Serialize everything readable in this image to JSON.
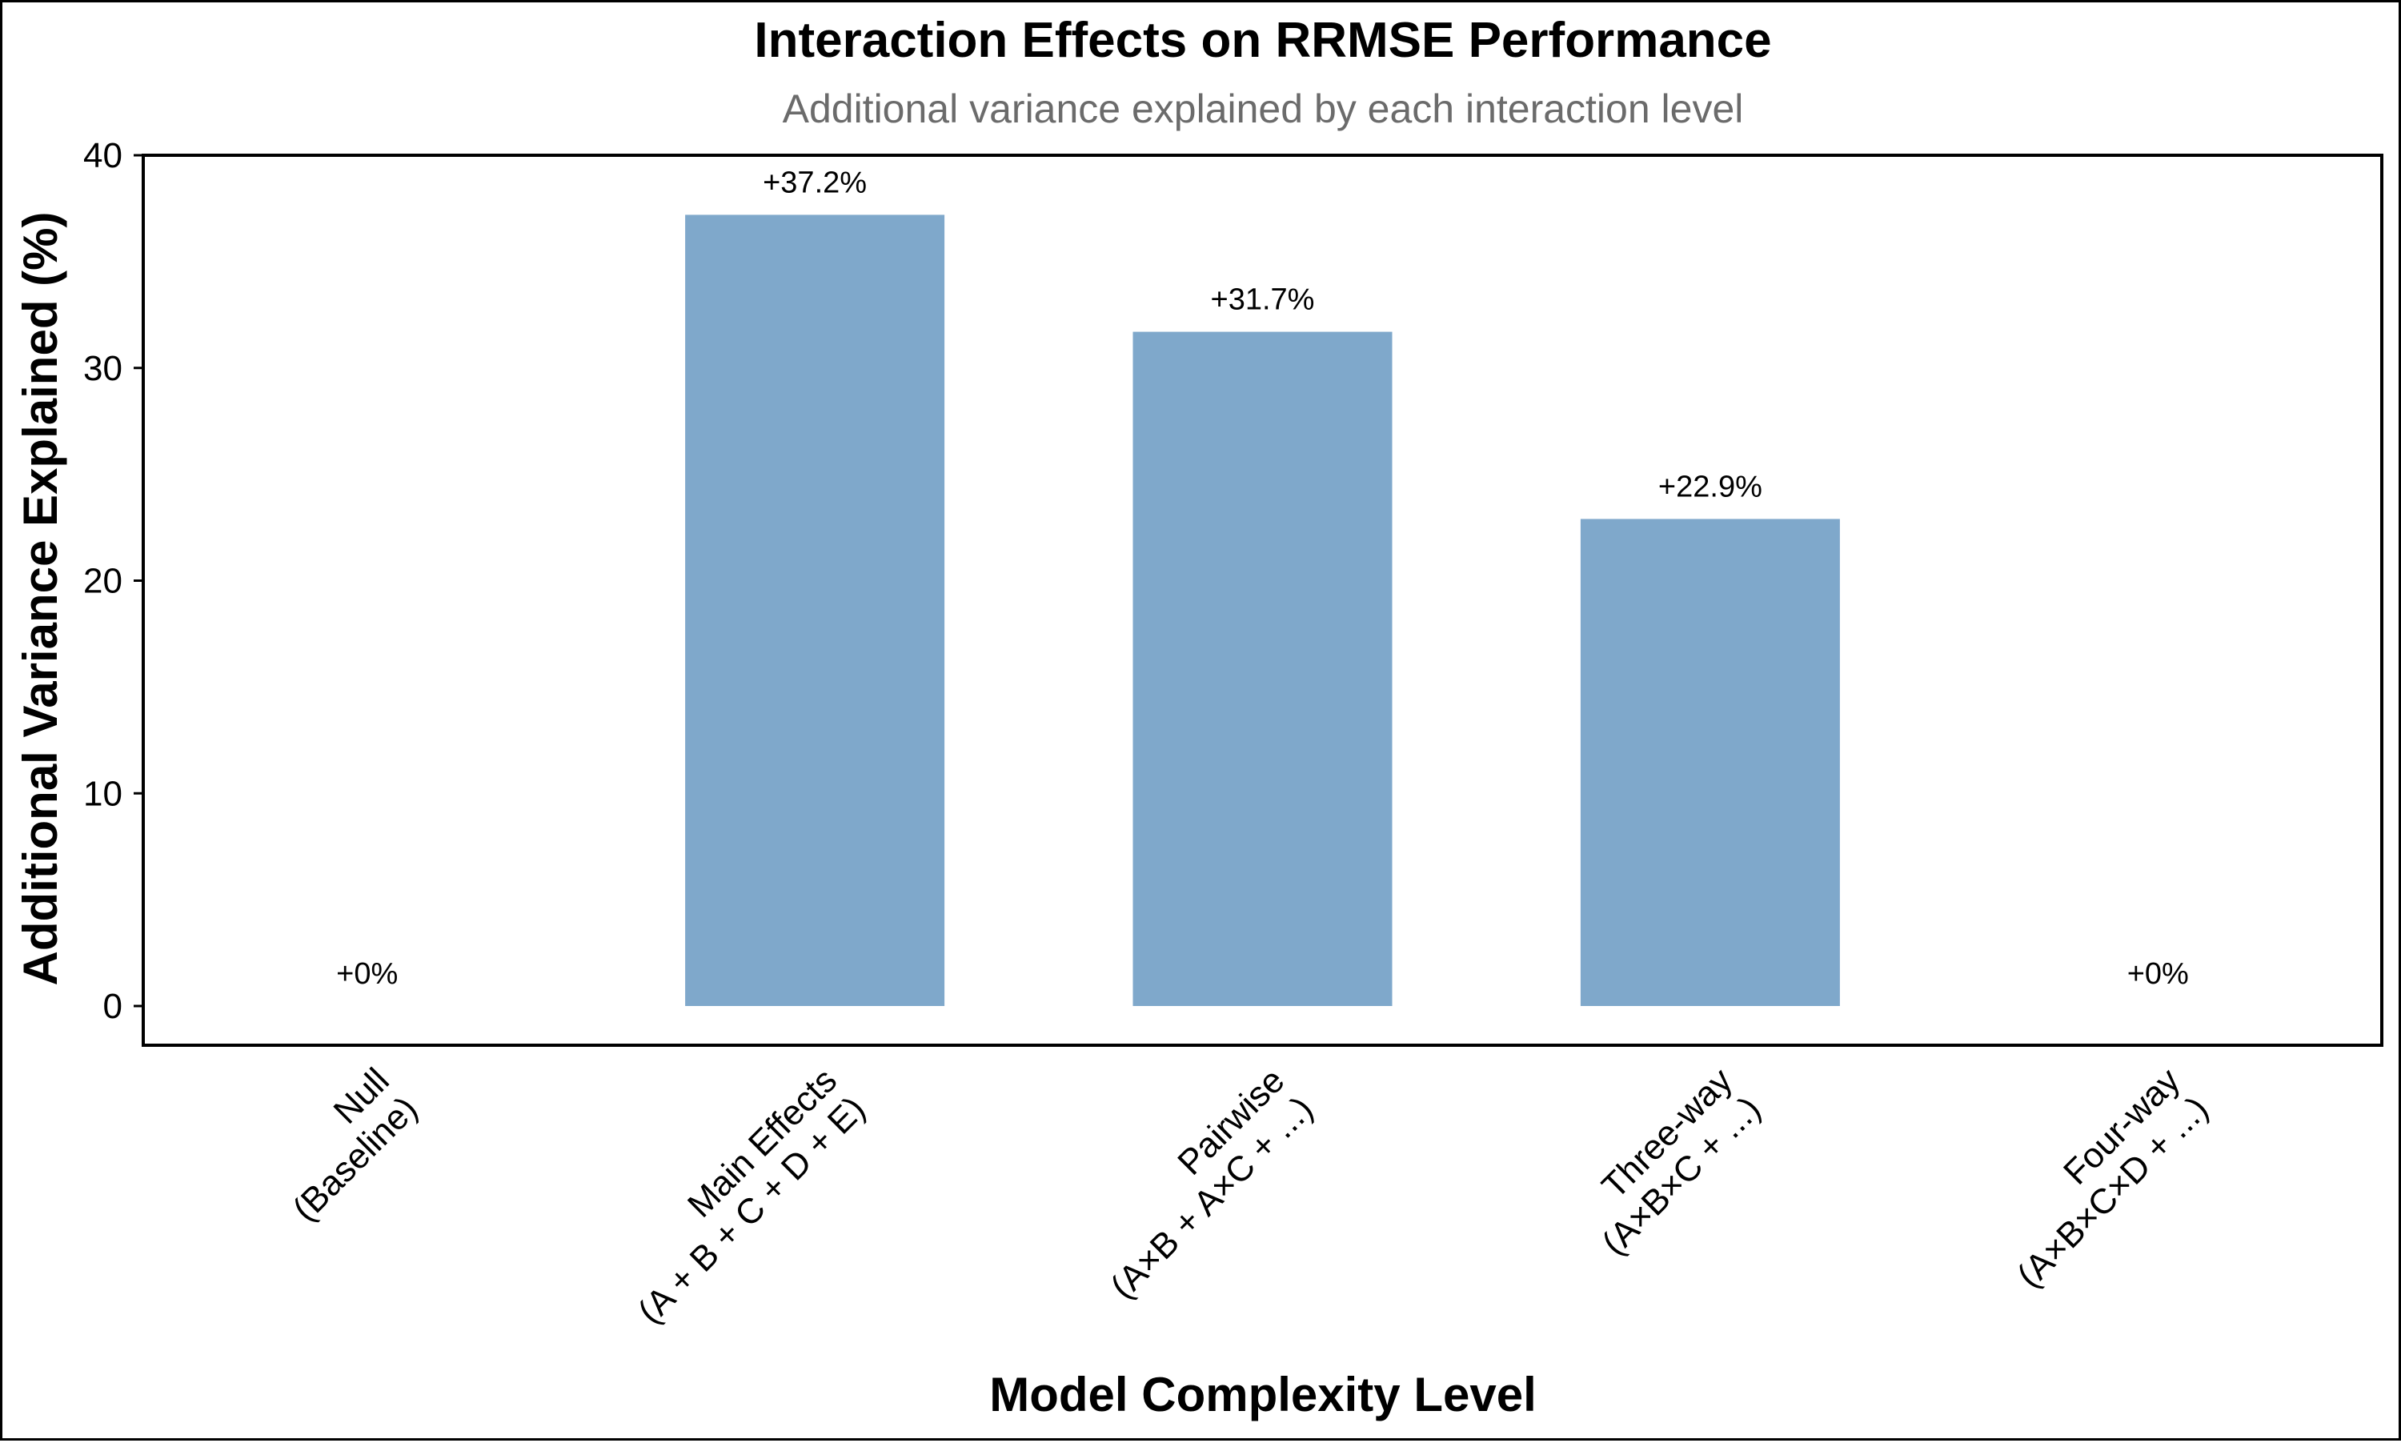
{
  "chart_data": {
    "type": "bar",
    "title": "Interaction Effects on RRMSE Performance",
    "subtitle": "Additional variance explained by each interaction level",
    "xlabel": "Model Complexity Level",
    "ylabel": "Additional Variance Explained (%)",
    "ylim": [
      0,
      40
    ],
    "yticks": [
      0,
      10,
      20,
      30,
      40
    ],
    "grid": false,
    "bar_color": "#7fa8cb",
    "categories": [
      [
        "Null",
        "(Baseline)"
      ],
      [
        "Main Effects",
        "(A + B + C + D + E)"
      ],
      [
        "Pairwise",
        "(A×B + A×C + ...)"
      ],
      [
        "Three-way",
        "(A×B×C + ...)"
      ],
      [
        "Four-way",
        "(A×B×C×D + ...)"
      ]
    ],
    "values": [
      0,
      37.2,
      31.7,
      22.9,
      0
    ],
    "data_labels": [
      "+0%",
      "+37.2%",
      "+31.7%",
      "+22.9%",
      "+0%"
    ]
  }
}
